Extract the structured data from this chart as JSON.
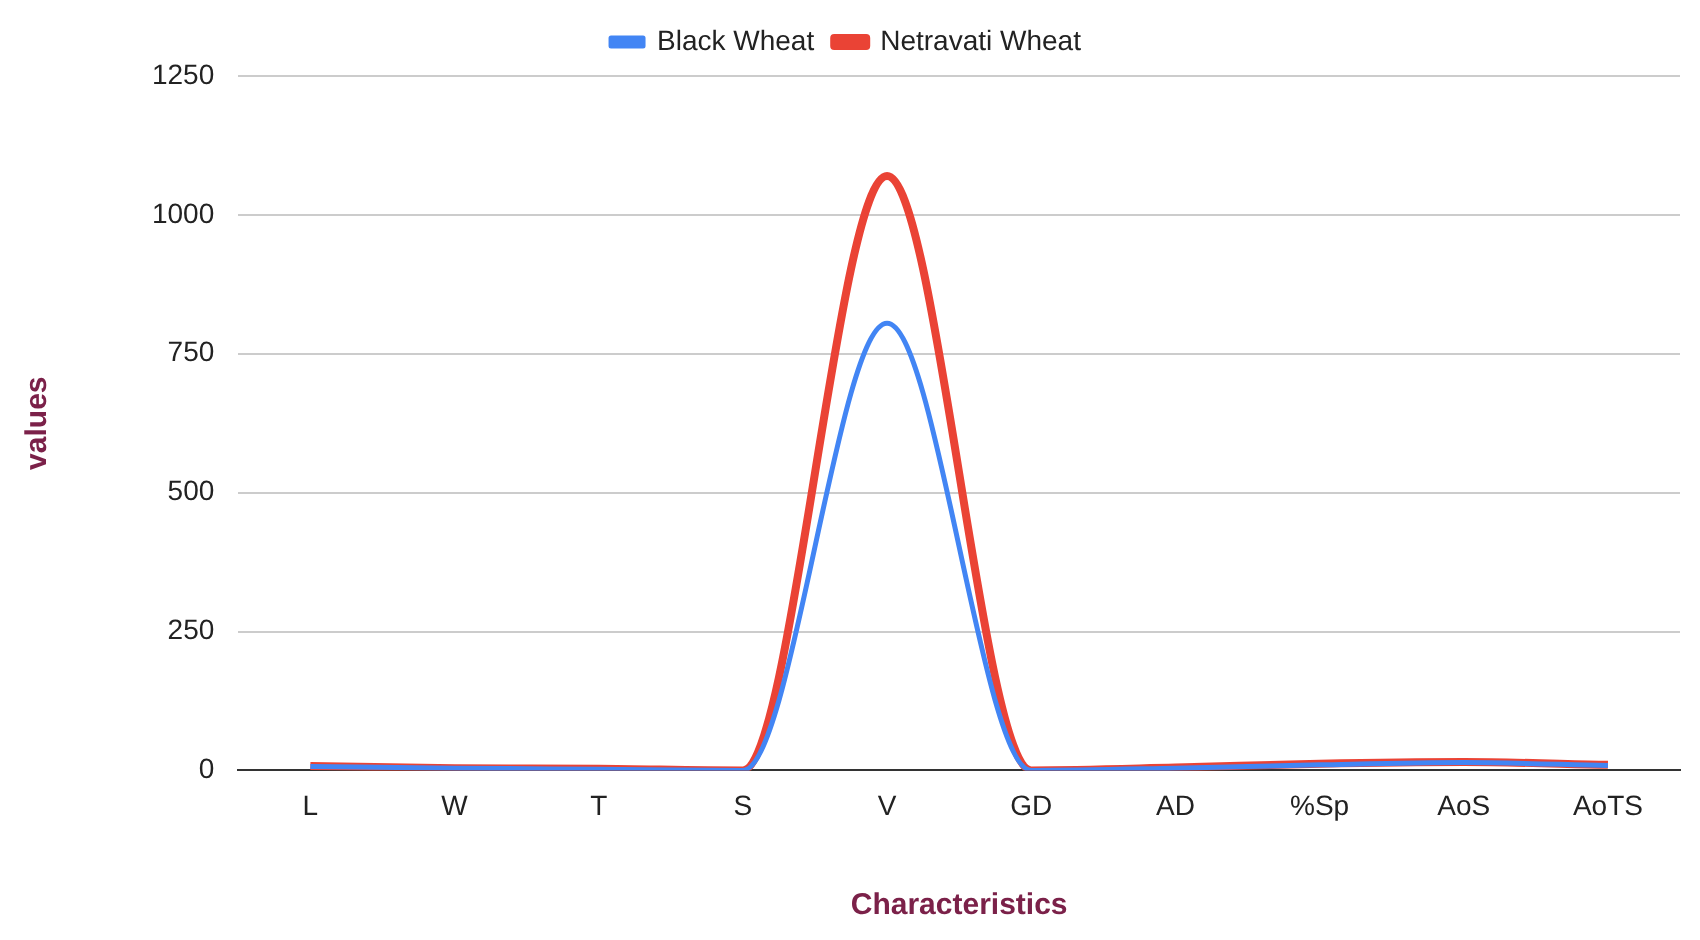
{
  "chart_data": {
    "type": "line",
    "xlabel": "Characteristics",
    "ylabel": "values",
    "categories": [
      "L",
      "W",
      "T",
      "S",
      "V",
      "GD",
      "AD",
      "%Sp",
      "AoS",
      "AoTS"
    ],
    "series": [
      {
        "name": "Black Wheat",
        "color": "#4285f4",
        "values": [
          7,
          4,
          2,
          0,
          805,
          0,
          4,
          10,
          14,
          9
        ]
      },
      {
        "name": "Netravati Wheat",
        "color": "#ea4335",
        "values": [
          8,
          4,
          3,
          0,
          1070,
          0,
          5,
          12,
          15,
          10
        ]
      }
    ],
    "ylim": [
      0,
      1250
    ],
    "yticks": [
      0,
      250,
      500,
      750,
      1000,
      1250
    ],
    "grid": "y",
    "legend": "top",
    "marker": "none",
    "line_style": "solid"
  }
}
